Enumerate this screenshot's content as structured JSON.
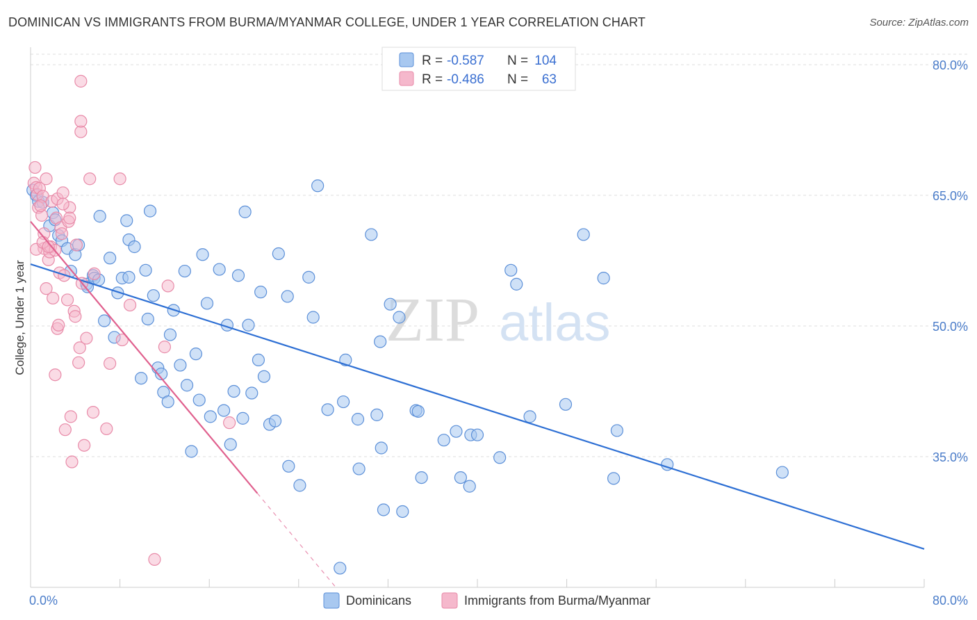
{
  "title": "DOMINICAN VS IMMIGRANTS FROM BURMA/MYANMAR COLLEGE, UNDER 1 YEAR CORRELATION CHART",
  "source": "Source: ZipAtlas.com",
  "watermark": {
    "part1": "ZIP",
    "part2": "atlas"
  },
  "colors": {
    "blue_fill": "#a8c8f0",
    "blue_stroke": "#5b8fd8",
    "blue_line": "#2d6fd4",
    "pink_fill": "#f5b8cc",
    "pink_stroke": "#e88aa8",
    "pink_line": "#e0608e",
    "tick_text": "#4a7cc9",
    "grid": "#dddddd"
  },
  "legend": {
    "rows": [
      {
        "r_label": "R = ",
        "r_value": "-0.587",
        "n_label": "N = ",
        "n_value": "104"
      },
      {
        "r_label": "R = ",
        "r_value": "-0.486",
        "n_label": "N = ",
        "n_value": "63"
      }
    ]
  },
  "chart_data": {
    "type": "scatter",
    "title": "DOMINICAN VS IMMIGRANTS FROM BURMA/MYANMAR COLLEGE, UNDER 1 YEAR CORRELATION CHART",
    "xlabel": "",
    "ylabel": "College, Under 1 year",
    "xlim": [
      0,
      80
    ],
    "ylim": [
      20,
      82
    ],
    "x_tick_labels": [
      "0.0%",
      "80.0%"
    ],
    "y_ticks": [
      35,
      50,
      65,
      80
    ],
    "y_tick_labels": [
      "35.0%",
      "50.0%",
      "65.0%",
      "80.0%"
    ],
    "grid": true,
    "legend_position": "bottom",
    "series": [
      {
        "name": "Dominicans",
        "color": "#a8c8f0",
        "r": -0.587,
        "n": 104,
        "trend": {
          "x": [
            0,
            80
          ],
          "y": [
            57.1,
            24.4
          ]
        },
        "points": [
          [
            0.2,
            65.6
          ],
          [
            0.5,
            65.0
          ],
          [
            0.7,
            64.3
          ],
          [
            1.1,
            64.2
          ],
          [
            1.7,
            61.5
          ],
          [
            2.0,
            63.0
          ],
          [
            2.2,
            62.2
          ],
          [
            2.5,
            60.4
          ],
          [
            2.8,
            59.8
          ],
          [
            3.3,
            58.9
          ],
          [
            3.6,
            56.3
          ],
          [
            4.0,
            58.2
          ],
          [
            4.3,
            59.3
          ],
          [
            5.0,
            54.8
          ],
          [
            5.1,
            54.5
          ],
          [
            5.6,
            55.8
          ],
          [
            5.7,
            55.5
          ],
          [
            6.1,
            55.3
          ],
          [
            6.2,
            62.6
          ],
          [
            6.6,
            50.6
          ],
          [
            7.1,
            57.8
          ],
          [
            7.5,
            48.7
          ],
          [
            7.8,
            53.8
          ],
          [
            8.2,
            55.5
          ],
          [
            8.6,
            62.1
          ],
          [
            8.8,
            55.6
          ],
          [
            8.8,
            59.9
          ],
          [
            9.3,
            59.1
          ],
          [
            9.9,
            44.0
          ],
          [
            10.3,
            56.4
          ],
          [
            10.5,
            50.8
          ],
          [
            10.7,
            63.2
          ],
          [
            11.0,
            53.5
          ],
          [
            11.4,
            45.2
          ],
          [
            11.7,
            44.5
          ],
          [
            11.9,
            42.4
          ],
          [
            12.3,
            41.3
          ],
          [
            12.5,
            49.0
          ],
          [
            12.8,
            51.8
          ],
          [
            13.4,
            45.5
          ],
          [
            13.8,
            56.3
          ],
          [
            14.0,
            43.2
          ],
          [
            14.4,
            35.6
          ],
          [
            14.8,
            46.8
          ],
          [
            15.1,
            41.5
          ],
          [
            15.4,
            58.2
          ],
          [
            15.8,
            52.6
          ],
          [
            16.1,
            39.6
          ],
          [
            16.9,
            56.5
          ],
          [
            17.3,
            40.3
          ],
          [
            17.6,
            50.1
          ],
          [
            17.9,
            36.4
          ],
          [
            18.2,
            42.5
          ],
          [
            18.6,
            55.8
          ],
          [
            19.0,
            39.4
          ],
          [
            19.2,
            63.1
          ],
          [
            19.5,
            50.1
          ],
          [
            19.8,
            42.3
          ],
          [
            20.4,
            46.1
          ],
          [
            20.6,
            53.9
          ],
          [
            20.9,
            44.2
          ],
          [
            21.4,
            38.7
          ],
          [
            21.9,
            39.1
          ],
          [
            22.2,
            58.3
          ],
          [
            23.0,
            53.4
          ],
          [
            23.1,
            33.9
          ],
          [
            24.1,
            31.7
          ],
          [
            24.9,
            55.6
          ],
          [
            25.3,
            51.0
          ],
          [
            25.7,
            66.1
          ],
          [
            26.6,
            40.4
          ],
          [
            28.0,
            41.3
          ],
          [
            28.2,
            46.1
          ],
          [
            29.3,
            39.3
          ],
          [
            29.4,
            33.6
          ],
          [
            30.5,
            60.5
          ],
          [
            31.0,
            39.8
          ],
          [
            31.3,
            48.2
          ],
          [
            31.4,
            36.0
          ],
          [
            31.6,
            28.9
          ],
          [
            32.2,
            52.5
          ],
          [
            33.0,
            51.0
          ],
          [
            33.3,
            28.7
          ],
          [
            34.5,
            40.3
          ],
          [
            34.7,
            40.2
          ],
          [
            35.0,
            32.6
          ],
          [
            37.0,
            36.9
          ],
          [
            38.1,
            37.9
          ],
          [
            38.5,
            32.6
          ],
          [
            39.3,
            31.6
          ],
          [
            39.4,
            37.5
          ],
          [
            40.0,
            37.5
          ],
          [
            42.0,
            34.9
          ],
          [
            43.0,
            56.4
          ],
          [
            43.5,
            54.8
          ],
          [
            44.7,
            39.6
          ],
          [
            47.9,
            41.0
          ],
          [
            49.5,
            60.5
          ],
          [
            51.3,
            55.5
          ],
          [
            52.2,
            32.5
          ],
          [
            52.5,
            38.0
          ],
          [
            57.0,
            34.1
          ],
          [
            67.3,
            33.2
          ],
          [
            27.7,
            22.2
          ]
        ]
      },
      {
        "name": "Immigrants from Burma/Myanmar",
        "color": "#f5b8cc",
        "r": -0.486,
        "n": 63,
        "trend": {
          "x": [
            0,
            20.3
          ],
          "y": [
            62.0,
            30.8
          ]
        },
        "points": [
          [
            0.3,
            66.4
          ],
          [
            0.4,
            68.2
          ],
          [
            0.5,
            65.9
          ],
          [
            0.6,
            65.1
          ],
          [
            0.7,
            63.6
          ],
          [
            0.8,
            65.8
          ],
          [
            1.0,
            62.7
          ],
          [
            1.1,
            64.9
          ],
          [
            1.2,
            60.6
          ],
          [
            1.2,
            58.9
          ],
          [
            1.4,
            54.3
          ],
          [
            1.4,
            66.9
          ],
          [
            1.6,
            57.6
          ],
          [
            1.7,
            58.5
          ],
          [
            1.8,
            59.1
          ],
          [
            1.9,
            64.3
          ],
          [
            2.0,
            53.2
          ],
          [
            2.2,
            44.4
          ],
          [
            2.3,
            62.4
          ],
          [
            2.4,
            64.6
          ],
          [
            2.4,
            49.7
          ],
          [
            2.5,
            50.1
          ],
          [
            2.6,
            56.1
          ],
          [
            2.7,
            61.3
          ],
          [
            2.8,
            60.6
          ],
          [
            2.9,
            65.3
          ],
          [
            3.0,
            55.8
          ],
          [
            3.1,
            38.1
          ],
          [
            3.3,
            53.0
          ],
          [
            3.4,
            62.0
          ],
          [
            3.5,
            63.6
          ],
          [
            3.6,
            39.6
          ],
          [
            3.7,
            34.4
          ],
          [
            3.9,
            51.7
          ],
          [
            4.0,
            51.1
          ],
          [
            4.1,
            59.3
          ],
          [
            4.3,
            45.8
          ],
          [
            4.4,
            47.5
          ],
          [
            4.5,
            72.3
          ],
          [
            4.5,
            73.5
          ],
          [
            4.5,
            78.1
          ],
          [
            4.8,
            36.3
          ],
          [
            5.0,
            48.6
          ],
          [
            5.3,
            66.9
          ],
          [
            5.6,
            40.1
          ],
          [
            5.7,
            56.0
          ],
          [
            6.8,
            38.2
          ],
          [
            7.1,
            45.7
          ],
          [
            8.0,
            66.9
          ],
          [
            8.2,
            48.4
          ],
          [
            8.9,
            52.4
          ],
          [
            12.0,
            47.6
          ],
          [
            12.3,
            54.6
          ],
          [
            17.8,
            38.9
          ],
          [
            11.1,
            23.2
          ],
          [
            0.5,
            58.8
          ],
          [
            1.1,
            59.6
          ],
          [
            2.2,
            58.7
          ],
          [
            2.9,
            64.0
          ],
          [
            3.5,
            62.4
          ],
          [
            0.9,
            63.8
          ],
          [
            1.6,
            59.1
          ],
          [
            4.6,
            54.9
          ]
        ]
      }
    ]
  },
  "bottom_legend": [
    "Dominicans",
    "Immigrants from Burma/Myanmar"
  ]
}
